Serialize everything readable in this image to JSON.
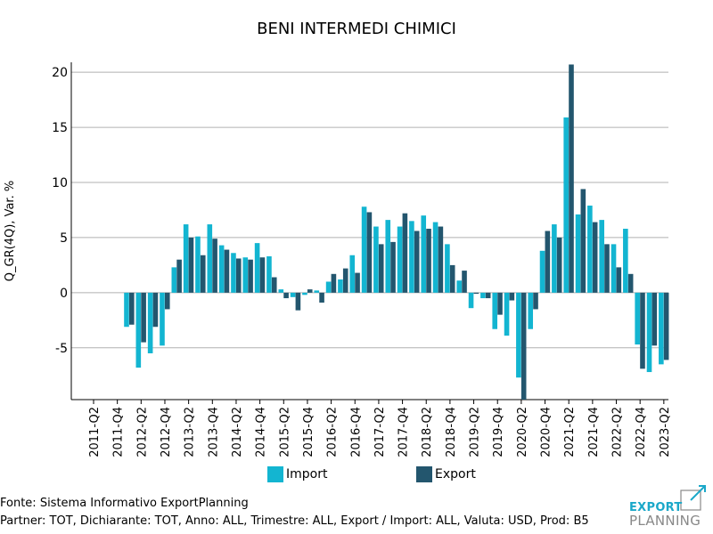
{
  "chart_data": {
    "type": "bar",
    "title": "BENI INTERMEDI CHIMICI",
    "ylabel": "Q_GR(4Q), Var. %",
    "xlabel": "",
    "ylim": [
      -9.7,
      20.9
    ],
    "yticks": [
      -5,
      0,
      5,
      10,
      15,
      20
    ],
    "grid": "horizontal",
    "legend_position": "bottom",
    "colors": {
      "Import": "#13b5d1",
      "Export": "#23566e"
    },
    "categories": [
      "2011-Q2",
      "2011-Q3",
      "2011-Q4",
      "2012-Q1",
      "2012-Q2",
      "2012-Q3",
      "2012-Q4",
      "2013-Q1",
      "2013-Q2",
      "2013-Q3",
      "2013-Q4",
      "2014-Q1",
      "2014-Q2",
      "2014-Q3",
      "2014-Q4",
      "2015-Q1",
      "2015-Q2",
      "2015-Q3",
      "2015-Q4",
      "2016-Q1",
      "2016-Q2",
      "2016-Q3",
      "2016-Q4",
      "2017-Q1",
      "2017-Q2",
      "2017-Q3",
      "2017-Q4",
      "2018-Q1",
      "2018-Q2",
      "2018-Q3",
      "2018-Q4",
      "2019-Q1",
      "2019-Q2",
      "2019-Q3",
      "2019-Q4",
      "2020-Q1",
      "2020-Q2",
      "2020-Q3",
      "2020-Q4",
      "2021-Q1",
      "2021-Q2",
      "2021-Q3",
      "2021-Q4",
      "2022-Q1",
      "2022-Q2",
      "2022-Q3",
      "2022-Q4",
      "2023-Q1",
      "2023-Q2"
    ],
    "tick_labels": [
      "2011-Q2",
      "2011-Q4",
      "2012-Q2",
      "2012-Q4",
      "2013-Q2",
      "2013-Q4",
      "2014-Q2",
      "2014-Q4",
      "2015-Q2",
      "2015-Q4",
      "2016-Q2",
      "2016-Q4",
      "2017-Q2",
      "2017-Q4",
      "2018-Q2",
      "2018-Q4",
      "2019-Q2",
      "2019-Q4",
      "2020-Q2",
      "2020-Q4",
      "2021-Q2",
      "2021-Q4",
      "2022-Q2",
      "2022-Q4",
      "2023-Q2"
    ],
    "series": [
      {
        "name": "Import",
        "values": [
          null,
          null,
          null,
          -3.1,
          -6.8,
          -5.5,
          -4.8,
          2.3,
          6.2,
          5.1,
          6.2,
          4.3,
          3.6,
          3.2,
          4.5,
          3.3,
          0.3,
          -0.4,
          -0.2,
          0.2,
          1.0,
          1.2,
          3.4,
          7.8,
          6.0,
          6.6,
          6.0,
          6.5,
          7.0,
          6.4,
          4.4,
          1.1,
          -1.4,
          -0.5,
          -3.3,
          -3.9,
          -7.7,
          -3.3,
          3.8,
          6.2,
          15.9,
          7.1,
          7.9,
          6.6,
          4.4,
          5.8,
          -4.7,
          -7.2,
          -6.5
        ]
      },
      {
        "name": "Export",
        "values": [
          null,
          null,
          null,
          -2.9,
          -4.5,
          -3.1,
          -1.5,
          3.0,
          5.0,
          3.4,
          4.9,
          3.9,
          3.1,
          3.0,
          3.2,
          1.4,
          -0.5,
          -1.6,
          0.3,
          -0.9,
          1.7,
          2.2,
          1.8,
          7.3,
          4.4,
          4.6,
          7.2,
          5.6,
          5.8,
          6.0,
          2.5,
          2.0,
          -0.1,
          -0.5,
          -2.0,
          -0.7,
          -9.7,
          -1.5,
          5.6,
          5.0,
          20.7,
          9.4,
          6.4,
          4.4,
          2.3,
          1.7,
          -6.9,
          -4.8,
          -6.1
        ]
      }
    ]
  },
  "legend": {
    "import": "Import",
    "export": "Export"
  },
  "footer": {
    "source": "Fonte: Sistema Informativo ExportPlanning",
    "filters": "Partner: TOT, Dichiarante: TOT, Anno: ALL, Trimestre: ALL, Export / Import: ALL, Valuta: USD, Prod: B5"
  },
  "logo": {
    "line1": "EXPORT",
    "line2": "PLANNING"
  }
}
